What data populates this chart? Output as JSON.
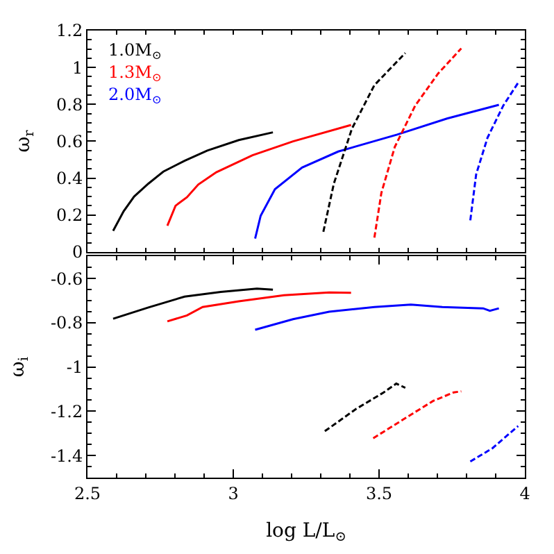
{
  "chart_data": [
    {
      "type": "line",
      "ylabel": "ω$_{r}$",
      "xlim": [
        2.5,
        4
      ],
      "xticks": [
        {
          "value": 2.5,
          "label": null
        },
        {
          "value": 3,
          "label": null
        },
        {
          "value": 3.5,
          "label": null
        },
        {
          "value": 4,
          "label": null
        }
      ],
      "ylim": [
        0,
        1.2
      ],
      "yticks": [
        0,
        0.2,
        0.4,
        0.6,
        0.8,
        1,
        1.2
      ],
      "tick_labels": "y",
      "legend": "top left",
      "series": [
        {
          "name": "1.0M$_{⊙}$",
          "color": "#000000",
          "line_style": "solid",
          "x": [
            2.588,
            2.624,
            2.66,
            2.709,
            2.76,
            2.833,
            2.911,
            3.019,
            3.136
          ],
          "values": [
            0.114,
            0.22,
            0.3,
            0.37,
            0.435,
            0.494,
            0.549,
            0.606,
            0.648
          ]
        },
        {
          "name": "1.3M$_{⊙}$",
          "color": "#ff0000",
          "line_style": "solid",
          "x": [
            2.774,
            2.802,
            2.841,
            2.88,
            2.942,
            3.066,
            3.205,
            3.404
          ],
          "values": [
            0.142,
            0.25,
            0.296,
            0.365,
            0.432,
            0.524,
            0.599,
            0.688
          ]
        },
        {
          "name": "2.0M$_{⊙}$",
          "color": "#0000ff",
          "line_style": "solid",
          "x": [
            3.075,
            3.094,
            3.143,
            3.236,
            3.36,
            3.562,
            3.733,
            3.911
          ],
          "values": [
            0.072,
            0.196,
            0.34,
            0.457,
            0.544,
            0.636,
            0.723,
            0.797
          ]
        },
        {
          "color": "#000000",
          "line_style": "dashed",
          "x": [
            3.309,
            3.345,
            3.407,
            3.484,
            3.59
          ],
          "values": [
            0.109,
            0.37,
            0.668,
            0.904,
            1.078
          ]
        },
        {
          "color": "#ff0000",
          "line_style": "dashed",
          "x": [
            3.484,
            3.508,
            3.554,
            3.624,
            3.702,
            3.782
          ],
          "values": [
            0.077,
            0.32,
            0.569,
            0.793,
            0.966,
            1.103
          ]
        },
        {
          "color": "#0000ff",
          "line_style": "dashed",
          "x": [
            3.813,
            3.833,
            3.872,
            3.926,
            3.977
          ],
          "values": [
            0.171,
            0.42,
            0.619,
            0.793,
            0.917
          ]
        }
      ]
    },
    {
      "type": "line",
      "ylabel": "ω$_{i}$",
      "xlabel": "log L/L$_{⊙}$",
      "xlim": [
        2.5,
        4
      ],
      "xticks": [
        2.5,
        3,
        3.5,
        4
      ],
      "ylim": [
        -1.5,
        -0.5
      ],
      "yticks": [
        -1.4,
        -1.2,
        -1,
        -0.8,
        -0.6
      ],
      "series": [
        {
          "color": "#000000",
          "line_style": "solid",
          "x": [
            2.588,
            2.709,
            2.833,
            2.957,
            3.081,
            3.136
          ],
          "values": [
            -0.782,
            -0.731,
            -0.682,
            -0.661,
            -0.646,
            -0.651
          ]
        },
        {
          "color": "#ff0000",
          "line_style": "solid",
          "x": [
            2.774,
            2.841,
            2.895,
            3.019,
            3.174,
            3.329,
            3.404
          ],
          "values": [
            -0.794,
            -0.767,
            -0.729,
            -0.703,
            -0.676,
            -0.663,
            -0.665
          ]
        },
        {
          "color": "#0000ff",
          "line_style": "solid",
          "x": [
            3.075,
            3.205,
            3.329,
            3.484,
            3.609,
            3.717,
            3.857,
            3.88,
            3.911
          ],
          "values": [
            -0.832,
            -0.784,
            -0.75,
            -0.729,
            -0.718,
            -0.729,
            -0.735,
            -0.746,
            -0.735
          ]
        },
        {
          "color": "#000000",
          "line_style": "dashed",
          "x": [
            3.314,
            3.422,
            3.516,
            3.559,
            3.59
          ],
          "values": [
            -1.29,
            -1.189,
            -1.115,
            -1.075,
            -1.094
          ]
        },
        {
          "color": "#ff0000",
          "line_style": "dashed",
          "x": [
            3.48,
            3.577,
            3.686,
            3.756,
            3.782
          ],
          "values": [
            -1.322,
            -1.242,
            -1.153,
            -1.115,
            -1.11
          ]
        },
        {
          "color": "#0000ff",
          "line_style": "dashed",
          "x": [
            3.813,
            3.888,
            3.977
          ],
          "values": [
            -1.427,
            -1.368,
            -1.267
          ]
        }
      ]
    }
  ]
}
